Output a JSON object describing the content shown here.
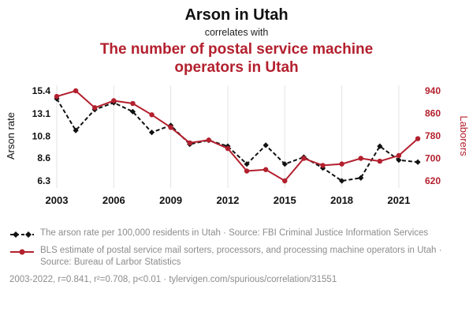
{
  "header": {
    "title": "Arson in Utah",
    "subtitle": "correlates with",
    "highlight": "The number of postal service machine operators in Utah"
  },
  "colors": {
    "accent": "#b3202e",
    "series_black": "#111111",
    "grid": "#e3e3e3",
    "muted": "#8c8c8c"
  },
  "chart_data": {
    "type": "line",
    "title": "Arson in Utah correlates with the number of postal service machine operators in Utah",
    "x": [
      2003,
      2004,
      2005,
      2006,
      2007,
      2008,
      2009,
      2010,
      2011,
      2012,
      2013,
      2014,
      2015,
      2016,
      2017,
      2018,
      2019,
      2020,
      2021,
      2022
    ],
    "x_ticks": [
      2003,
      2006,
      2009,
      2012,
      2015,
      2018,
      2021
    ],
    "left_axis": {
      "label": "Arson rate",
      "ticks": [
        6.3,
        8.6,
        10.8,
        13.1,
        15.4
      ],
      "range": [
        5.9,
        15.8
      ]
    },
    "right_axis": {
      "label": "Laborers",
      "ticks": [
        620,
        700,
        780,
        860,
        940
      ],
      "range": [
        606,
        954
      ]
    },
    "grid": "vertical",
    "legend_position": "bottom",
    "series": [
      {
        "name": "Arson rate per 100,000 residents in Utah",
        "axis": "left",
        "color": "#111111",
        "dash": true,
        "marker": "diamond",
        "values": [
          14.6,
          11.4,
          13.5,
          14.2,
          13.3,
          11.2,
          11.9,
          10.0,
          10.4,
          9.8,
          8.0,
          9.9,
          8.0,
          8.7,
          7.6,
          6.3,
          6.6,
          9.8,
          8.4,
          8.2
        ]
      },
      {
        "name": "Postal service machine operators in Utah",
        "axis": "right",
        "color": "#b3202e",
        "dash": false,
        "marker": "circle",
        "values": [
          920,
          940,
          880,
          905,
          895,
          855,
          810,
          755,
          765,
          735,
          655,
          660,
          620,
          700,
          675,
          680,
          700,
          690,
          710,
          770
        ]
      }
    ]
  },
  "legend": [
    {
      "label": "The arson rate per 100,000 residents in Utah · Source: FBI Criminal Justice Information Services"
    },
    {
      "label": "BLS estimate of postal service mail sorters, processors, and processing machine operators in Utah · Source: Bureau of Larbor Statistics"
    }
  ],
  "footer": {
    "text": "2003-2022, r=0.841, r²=0.708, p<0.01 · tylervigen.com/spurious/correlation/31551"
  }
}
